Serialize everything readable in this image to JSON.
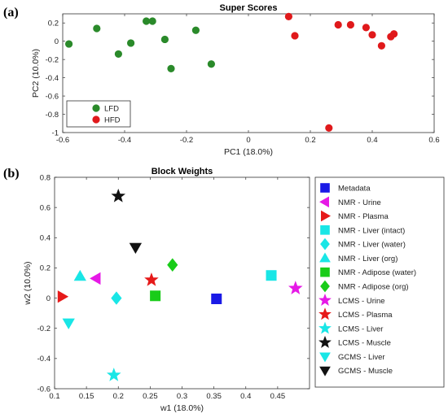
{
  "chart_data": [
    {
      "panel_label": "(a)",
      "type": "scatter",
      "title": "Super Scores",
      "xlabel": "PC1 (18.0%)",
      "ylabel": "PC2 (10.0%)",
      "xlim": [
        -0.6,
        0.6
      ],
      "ylim": [
        -1,
        0.3
      ],
      "xticks": [
        "-0.6",
        "-0.4",
        "-0.2",
        "0",
        "0.2",
        "0.4",
        "0.6"
      ],
      "yticks": [
        "-1",
        "-0.8",
        "-0.6",
        "-0.4",
        "-0.2",
        "0",
        "0.2"
      ],
      "grid": false,
      "legend_position": "bottom-left",
      "series": [
        {
          "name": "LFD",
          "color": "#2a8a2a",
          "marker": "circle",
          "points": [
            [
              -0.58,
              -0.03
            ],
            [
              -0.49,
              0.14
            ],
            [
              -0.42,
              -0.14
            ],
            [
              -0.38,
              -0.02
            ],
            [
              -0.33,
              0.22
            ],
            [
              -0.31,
              0.22
            ],
            [
              -0.27,
              0.02
            ],
            [
              -0.25,
              -0.3
            ],
            [
              -0.17,
              0.12
            ],
            [
              -0.12,
              -0.25
            ]
          ]
        },
        {
          "name": "HFD",
          "color": "#e0191b",
          "marker": "circle",
          "points": [
            [
              0.13,
              0.27
            ],
            [
              0.15,
              0.06
            ],
            [
              0.26,
              -0.95
            ],
            [
              0.29,
              0.18
            ],
            [
              0.33,
              0.18
            ],
            [
              0.38,
              0.15
            ],
            [
              0.4,
              0.07
            ],
            [
              0.43,
              -0.05
            ],
            [
              0.46,
              0.05
            ],
            [
              0.47,
              0.08
            ]
          ]
        }
      ]
    },
    {
      "panel_label": "(b)",
      "type": "scatter",
      "title": "Block Weights",
      "xlabel": "w1 (18.0%)",
      "ylabel": "w2 (10.0%)",
      "xlim": [
        0.1,
        0.5
      ],
      "ylim": [
        -0.6,
        0.8
      ],
      "xticks": [
        "0.1",
        "0.15",
        "0.2",
        "0.25",
        "0.3",
        "0.35",
        "0.4",
        "0.45"
      ],
      "yticks": [
        "-0.6",
        "-0.4",
        "-0.2",
        "0",
        "0.2",
        "0.4",
        "0.6",
        "0.8"
      ],
      "grid": false,
      "legend_position": "outside-right",
      "series": [
        {
          "name": "Metadata",
          "color": "#1a1ae6",
          "marker": "square",
          "x": 0.354,
          "y": -0.005
        },
        {
          "name": "NMR - Urine",
          "color": "#e619e6",
          "marker": "triangle-left",
          "x": 0.165,
          "y": 0.13
        },
        {
          "name": "NMR - Plasma",
          "color": "#e61919",
          "marker": "triangle-right",
          "x": 0.112,
          "y": 0.01
        },
        {
          "name": "NMR - Liver (intact)",
          "color": "#19e6e6",
          "marker": "square",
          "x": 0.44,
          "y": 0.15
        },
        {
          "name": "NMR - Liver (water)",
          "color": "#19e6e6",
          "marker": "diamond",
          "x": 0.197,
          "y": 0.0
        },
        {
          "name": "NMR - Liver (org)",
          "color": "#19e6e6",
          "marker": "triangle-up",
          "x": 0.14,
          "y": 0.145
        },
        {
          "name": "NMR - Adipose (water)",
          "color": "#19cc19",
          "marker": "square",
          "x": 0.258,
          "y": 0.015
        },
        {
          "name": "NMR - Adipose (org)",
          "color": "#19cc19",
          "marker": "diamond",
          "x": 0.285,
          "y": 0.22
        },
        {
          "name": "LCMS - Urine",
          "color": "#e619e6",
          "marker": "star",
          "x": 0.478,
          "y": 0.065
        },
        {
          "name": "LCMS - Plasma",
          "color": "#e61919",
          "marker": "star",
          "x": 0.252,
          "y": 0.12
        },
        {
          "name": "LCMS - Liver",
          "color": "#19e6e6",
          "marker": "star",
          "x": 0.193,
          "y": -0.51
        },
        {
          "name": "LCMS - Muscle",
          "color": "#111111",
          "marker": "star",
          "x": 0.2,
          "y": 0.675
        },
        {
          "name": "GCMS - Liver",
          "color": "#19e6e6",
          "marker": "triangle-down",
          "x": 0.122,
          "y": -0.165
        },
        {
          "name": "GCMS - Muscle",
          "color": "#111111",
          "marker": "triangle-down",
          "x": 0.227,
          "y": 0.335
        }
      ]
    }
  ]
}
